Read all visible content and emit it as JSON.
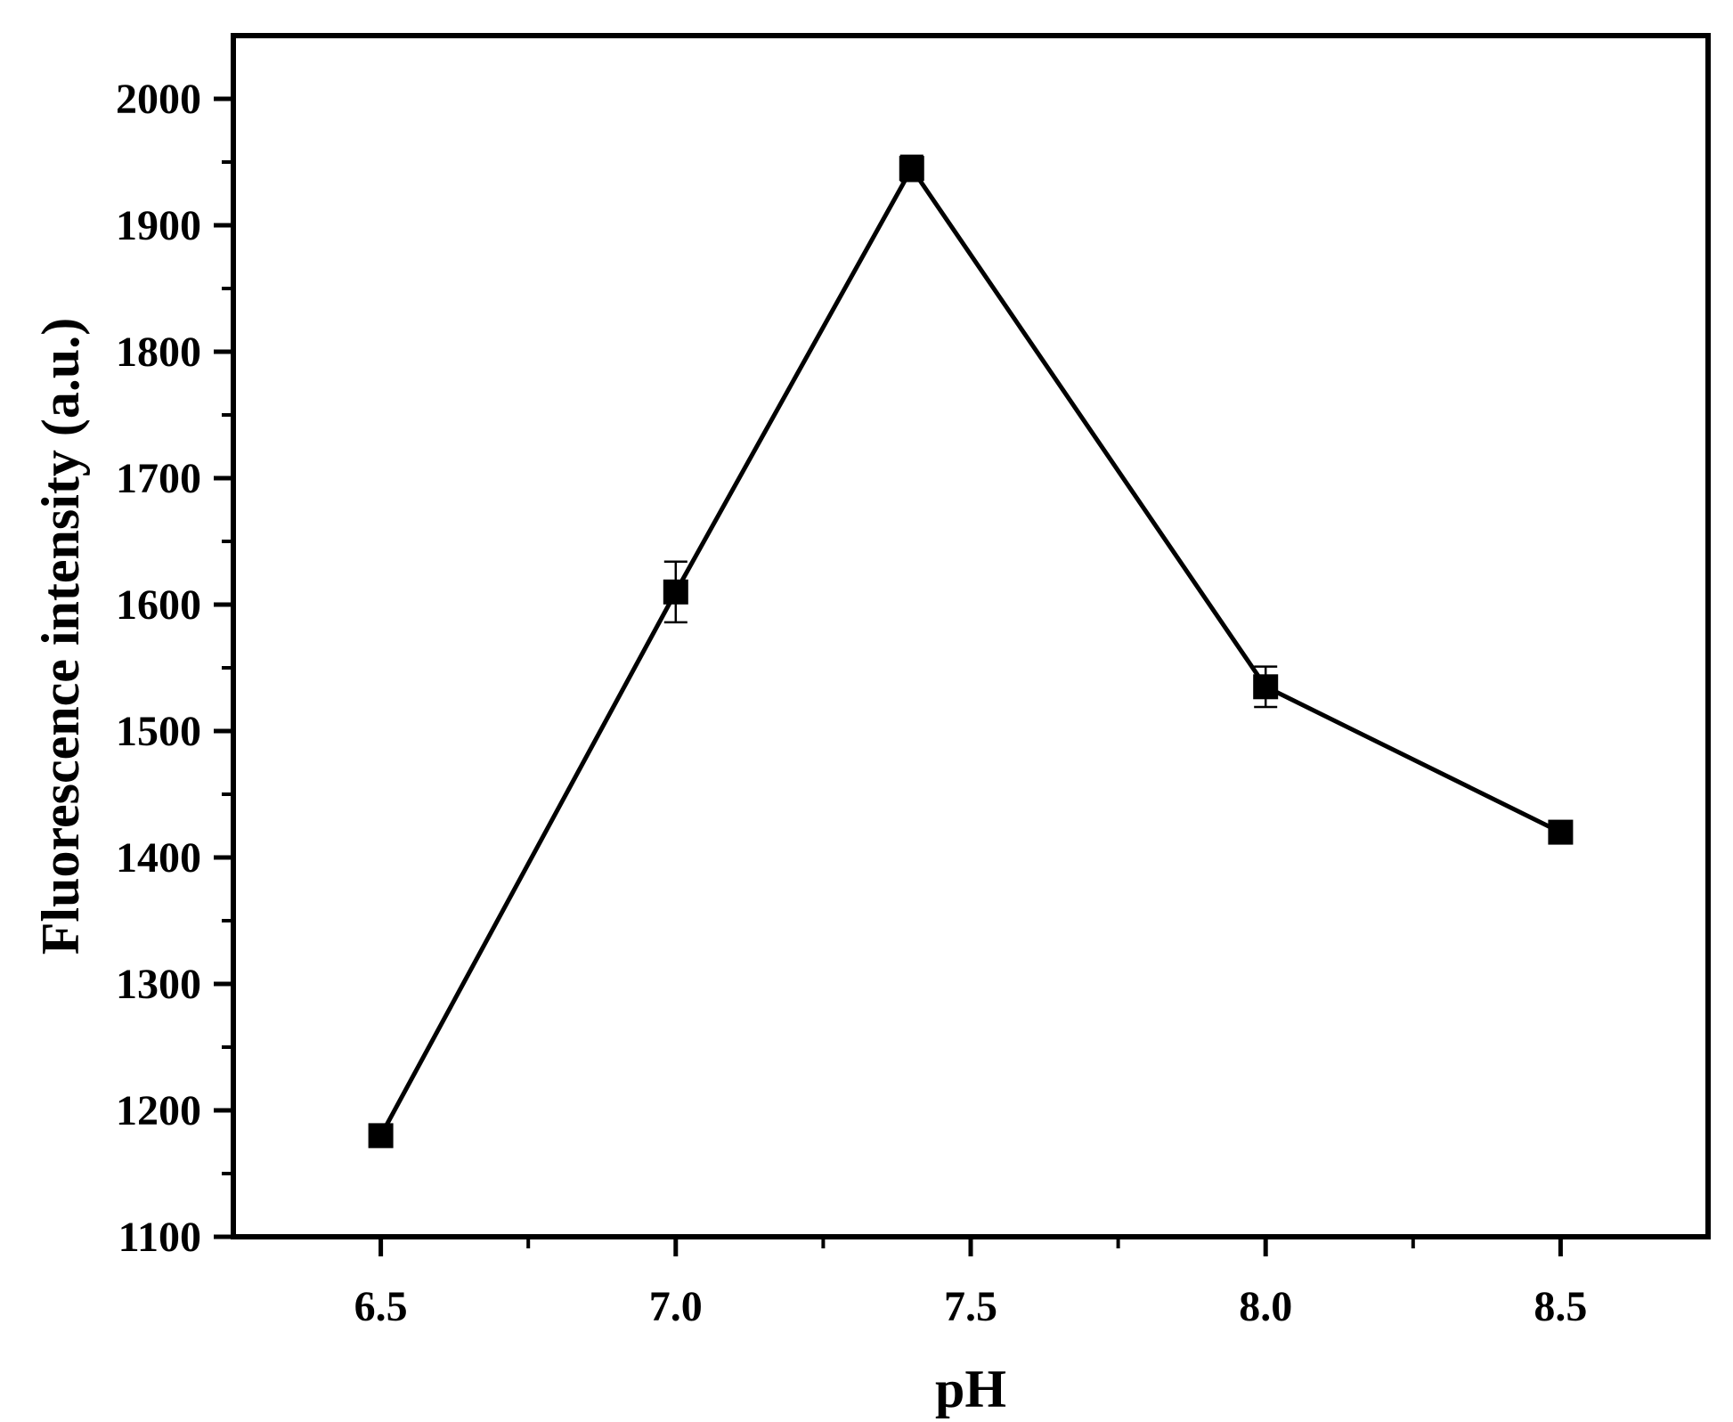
{
  "chart_data": {
    "type": "line",
    "title": "",
    "xlabel": "pH",
    "ylabel": "Fluorescence intensity (a.u.)",
    "xlim": [
      6.25,
      8.75
    ],
    "ylim": [
      1100,
      2050
    ],
    "x_major_ticks": [
      6.5,
      7.0,
      7.5,
      8.0,
      8.5
    ],
    "x_tick_labels": [
      "6.5",
      "7.0",
      "7.5",
      "8.0",
      "8.5"
    ],
    "x_minor_ticks": [
      6.75,
      7.25,
      7.75,
      8.25
    ],
    "y_major_ticks": [
      1100,
      1200,
      1300,
      1400,
      1500,
      1600,
      1700,
      1800,
      1900,
      2000
    ],
    "y_tick_labels": [
      "1100",
      "1200",
      "1300",
      "1400",
      "1500",
      "1600",
      "1700",
      "1800",
      "1900",
      "2000"
    ],
    "y_minor_ticks": [
      1150,
      1250,
      1350,
      1450,
      1550,
      1650,
      1750,
      1850,
      1950
    ],
    "grid": false,
    "legend": "none",
    "marker": "square",
    "line_color": "#000000",
    "series": [
      {
        "x": [
          6.5,
          7.0,
          7.4,
          8.0,
          8.5
        ],
        "y": [
          1180,
          1610,
          1945,
          1535,
          1420
        ],
        "error": [
          5,
          24,
          10,
          16,
          5
        ]
      }
    ]
  }
}
